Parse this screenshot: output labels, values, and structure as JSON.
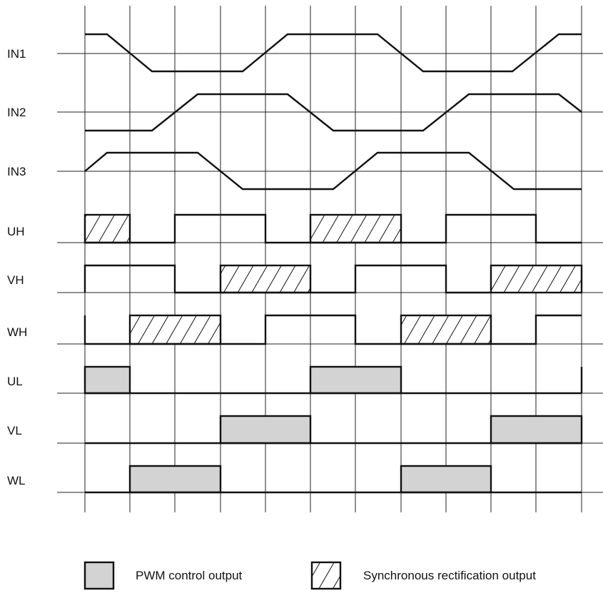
{
  "signals": [
    "IN1",
    "IN2",
    "IN3",
    "UH",
    "VH",
    "WH",
    "UL",
    "VL",
    "WL"
  ],
  "legend": {
    "pwm_label": "PWM control output",
    "sync_label": "Synchronous rectification output"
  },
  "colors": {
    "pwm_fill": "#d3d3d3",
    "line": "#111111",
    "background": "#ffffff"
  }
}
